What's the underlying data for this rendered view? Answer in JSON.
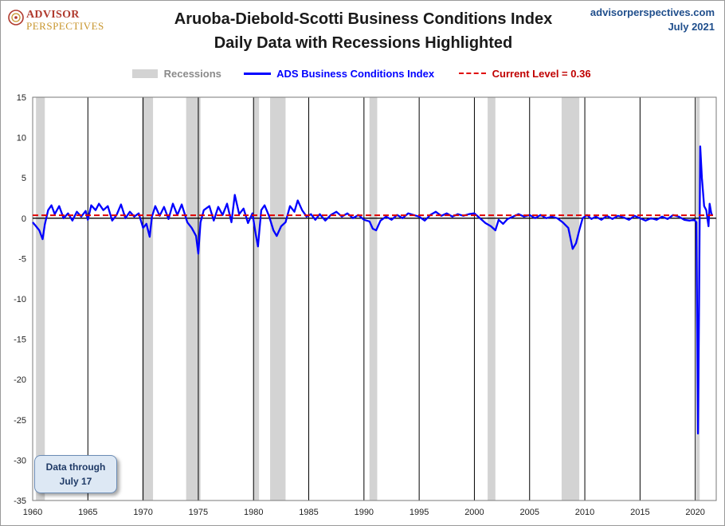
{
  "header": {
    "logo_top": "ADVISOR",
    "logo_bottom": "PERSPECTIVES",
    "site": "advisorperspectives.com",
    "date": "July 2021"
  },
  "note": {
    "line1": "Data through",
    "line2": "July 17"
  },
  "colors": {
    "recession": "#d3d3d3",
    "series": "#0000ff",
    "current": "#e00000",
    "zero": "#000000"
  },
  "chart_data": {
    "type": "line",
    "title": "Aruoba-Diebold-Scotti Business Conditions Index",
    "subtitle": "Daily Data with Recessions Highlighted",
    "legend": {
      "recessions": "Recessions",
      "series": "ADS Business Conditions Index",
      "current": "Current Level =  0.36"
    },
    "legend_position": "top",
    "xlim": [
      1960,
      2021.9
    ],
    "ylim": [
      -35,
      15
    ],
    "x_ticks": [
      "1960",
      "1965",
      "1970",
      "1975",
      "1980",
      "1985",
      "1990",
      "1995",
      "2000",
      "2005",
      "2010",
      "2015",
      "2020"
    ],
    "y_ticks": [
      "15",
      "10",
      "5",
      "0",
      "-5",
      "-10",
      "-15",
      "-20",
      "-25",
      "-30",
      "-35"
    ],
    "vertical_gridlines_every_years": 5,
    "current_level": 0.36,
    "recessions": [
      [
        1960.3,
        1961.1
      ],
      [
        1969.9,
        1970.9
      ],
      [
        1973.9,
        1975.2
      ],
      [
        1980.0,
        1980.5
      ],
      [
        1981.5,
        1982.9
      ],
      [
        1990.5,
        1991.2
      ],
      [
        2001.2,
        2001.9
      ],
      [
        2007.9,
        2009.5
      ],
      [
        2020.1,
        2020.4
      ]
    ],
    "series": [
      {
        "name": "ADS Business Conditions Index",
        "points": [
          [
            1960.0,
            -0.5
          ],
          [
            1960.3,
            -1.0
          ],
          [
            1960.6,
            -1.5
          ],
          [
            1960.9,
            -2.6
          ],
          [
            1961.1,
            -0.8
          ],
          [
            1961.4,
            1.0
          ],
          [
            1961.7,
            1.6
          ],
          [
            1962.0,
            0.5
          ],
          [
            1962.4,
            1.5
          ],
          [
            1962.8,
            0.0
          ],
          [
            1963.2,
            0.6
          ],
          [
            1963.6,
            -0.3
          ],
          [
            1964.0,
            0.8
          ],
          [
            1964.4,
            0.2
          ],
          [
            1964.8,
            0.9
          ],
          [
            1965.0,
            -0.2
          ],
          [
            1965.3,
            1.6
          ],
          [
            1965.7,
            1.0
          ],
          [
            1966.0,
            1.8
          ],
          [
            1966.4,
            1.0
          ],
          [
            1966.8,
            1.5
          ],
          [
            1967.2,
            -0.3
          ],
          [
            1967.6,
            0.4
          ],
          [
            1968.0,
            1.7
          ],
          [
            1968.4,
            0.0
          ],
          [
            1968.8,
            0.8
          ],
          [
            1969.2,
            0.2
          ],
          [
            1969.6,
            0.6
          ],
          [
            1970.0,
            -1.2
          ],
          [
            1970.3,
            -0.7
          ],
          [
            1970.6,
            -2.3
          ],
          [
            1970.8,
            0.2
          ],
          [
            1971.1,
            1.5
          ],
          [
            1971.5,
            0.3
          ],
          [
            1971.9,
            1.4
          ],
          [
            1972.3,
            -0.1
          ],
          [
            1972.7,
            1.8
          ],
          [
            1973.1,
            0.4
          ],
          [
            1973.5,
            1.7
          ],
          [
            1974.0,
            -0.5
          ],
          [
            1974.4,
            -1.2
          ],
          [
            1974.8,
            -2.2
          ],
          [
            1975.0,
            -4.4
          ],
          [
            1975.2,
            -0.5
          ],
          [
            1975.5,
            1.0
          ],
          [
            1976.0,
            1.5
          ],
          [
            1976.4,
            -0.3
          ],
          [
            1976.8,
            1.4
          ],
          [
            1977.2,
            0.4
          ],
          [
            1977.6,
            1.8
          ],
          [
            1978.0,
            -0.5
          ],
          [
            1978.3,
            2.9
          ],
          [
            1978.7,
            0.5
          ],
          [
            1979.1,
            1.2
          ],
          [
            1979.5,
            -0.6
          ],
          [
            1979.9,
            0.6
          ],
          [
            1980.2,
            -2.0
          ],
          [
            1980.4,
            -3.5
          ],
          [
            1980.7,
            1.0
          ],
          [
            1981.0,
            1.6
          ],
          [
            1981.4,
            0.3
          ],
          [
            1981.8,
            -1.5
          ],
          [
            1982.1,
            -2.2
          ],
          [
            1982.5,
            -1.0
          ],
          [
            1982.9,
            -0.5
          ],
          [
            1983.3,
            1.5
          ],
          [
            1983.7,
            0.8
          ],
          [
            1984.0,
            2.2
          ],
          [
            1984.4,
            1.0
          ],
          [
            1984.8,
            0.2
          ],
          [
            1985.2,
            0.5
          ],
          [
            1985.6,
            -0.2
          ],
          [
            1986.0,
            0.5
          ],
          [
            1986.5,
            -0.3
          ],
          [
            1987.0,
            0.4
          ],
          [
            1987.5,
            0.8
          ],
          [
            1988.0,
            0.2
          ],
          [
            1988.5,
            0.6
          ],
          [
            1989.0,
            0.0
          ],
          [
            1989.5,
            0.4
          ],
          [
            1990.0,
            -0.2
          ],
          [
            1990.5,
            -0.4
          ],
          [
            1990.8,
            -1.3
          ],
          [
            1991.1,
            -1.5
          ],
          [
            1991.5,
            -0.3
          ],
          [
            1992.0,
            0.2
          ],
          [
            1992.5,
            -0.2
          ],
          [
            1993.0,
            0.4
          ],
          [
            1993.5,
            0.0
          ],
          [
            1994.0,
            0.6
          ],
          [
            1994.5,
            0.4
          ],
          [
            1995.0,
            0.2
          ],
          [
            1995.5,
            -0.3
          ],
          [
            1996.0,
            0.4
          ],
          [
            1996.5,
            0.8
          ],
          [
            1997.0,
            0.3
          ],
          [
            1997.5,
            0.6
          ],
          [
            1998.0,
            0.2
          ],
          [
            1998.5,
            0.5
          ],
          [
            1999.0,
            0.3
          ],
          [
            1999.5,
            0.5
          ],
          [
            2000.0,
            0.6
          ],
          [
            2000.5,
            0.0
          ],
          [
            2001.0,
            -0.6
          ],
          [
            2001.5,
            -1.0
          ],
          [
            2001.9,
            -1.5
          ],
          [
            2002.2,
            -0.2
          ],
          [
            2002.6,
            -0.7
          ],
          [
            2003.0,
            -0.1
          ],
          [
            2003.5,
            0.2
          ],
          [
            2004.0,
            0.5
          ],
          [
            2004.5,
            0.2
          ],
          [
            2005.0,
            0.4
          ],
          [
            2005.5,
            0.0
          ],
          [
            2006.0,
            0.4
          ],
          [
            2006.5,
            0.0
          ],
          [
            2007.0,
            0.2
          ],
          [
            2007.5,
            0.0
          ],
          [
            2008.0,
            -0.5
          ],
          [
            2008.5,
            -1.2
          ],
          [
            2008.9,
            -3.8
          ],
          [
            2009.2,
            -3.1
          ],
          [
            2009.5,
            -1.5
          ],
          [
            2009.8,
            0.0
          ],
          [
            2010.2,
            0.4
          ],
          [
            2010.6,
            -0.1
          ],
          [
            2011.0,
            0.2
          ],
          [
            2011.5,
            -0.2
          ],
          [
            2012.0,
            0.3
          ],
          [
            2012.5,
            -0.1
          ],
          [
            2013.0,
            0.3
          ],
          [
            2013.5,
            0.1
          ],
          [
            2014.0,
            -0.2
          ],
          [
            2014.5,
            0.3
          ],
          [
            2015.0,
            0.0
          ],
          [
            2015.5,
            -0.3
          ],
          [
            2016.0,
            0.0
          ],
          [
            2016.5,
            -0.2
          ],
          [
            2017.0,
            0.2
          ],
          [
            2017.5,
            -0.1
          ],
          [
            2018.0,
            0.4
          ],
          [
            2018.5,
            0.2
          ],
          [
            2019.0,
            -0.2
          ],
          [
            2019.5,
            -0.3
          ],
          [
            2019.9,
            -0.2
          ],
          [
            2020.1,
            -0.5
          ],
          [
            2020.25,
            -26.7
          ],
          [
            2020.35,
            -10.0
          ],
          [
            2020.45,
            8.9
          ],
          [
            2020.6,
            5.0
          ],
          [
            2020.8,
            1.5
          ],
          [
            2021.0,
            1.0
          ],
          [
            2021.2,
            -1.0
          ],
          [
            2021.3,
            1.8
          ],
          [
            2021.45,
            0.6
          ],
          [
            2021.55,
            0.36
          ]
        ]
      }
    ]
  }
}
